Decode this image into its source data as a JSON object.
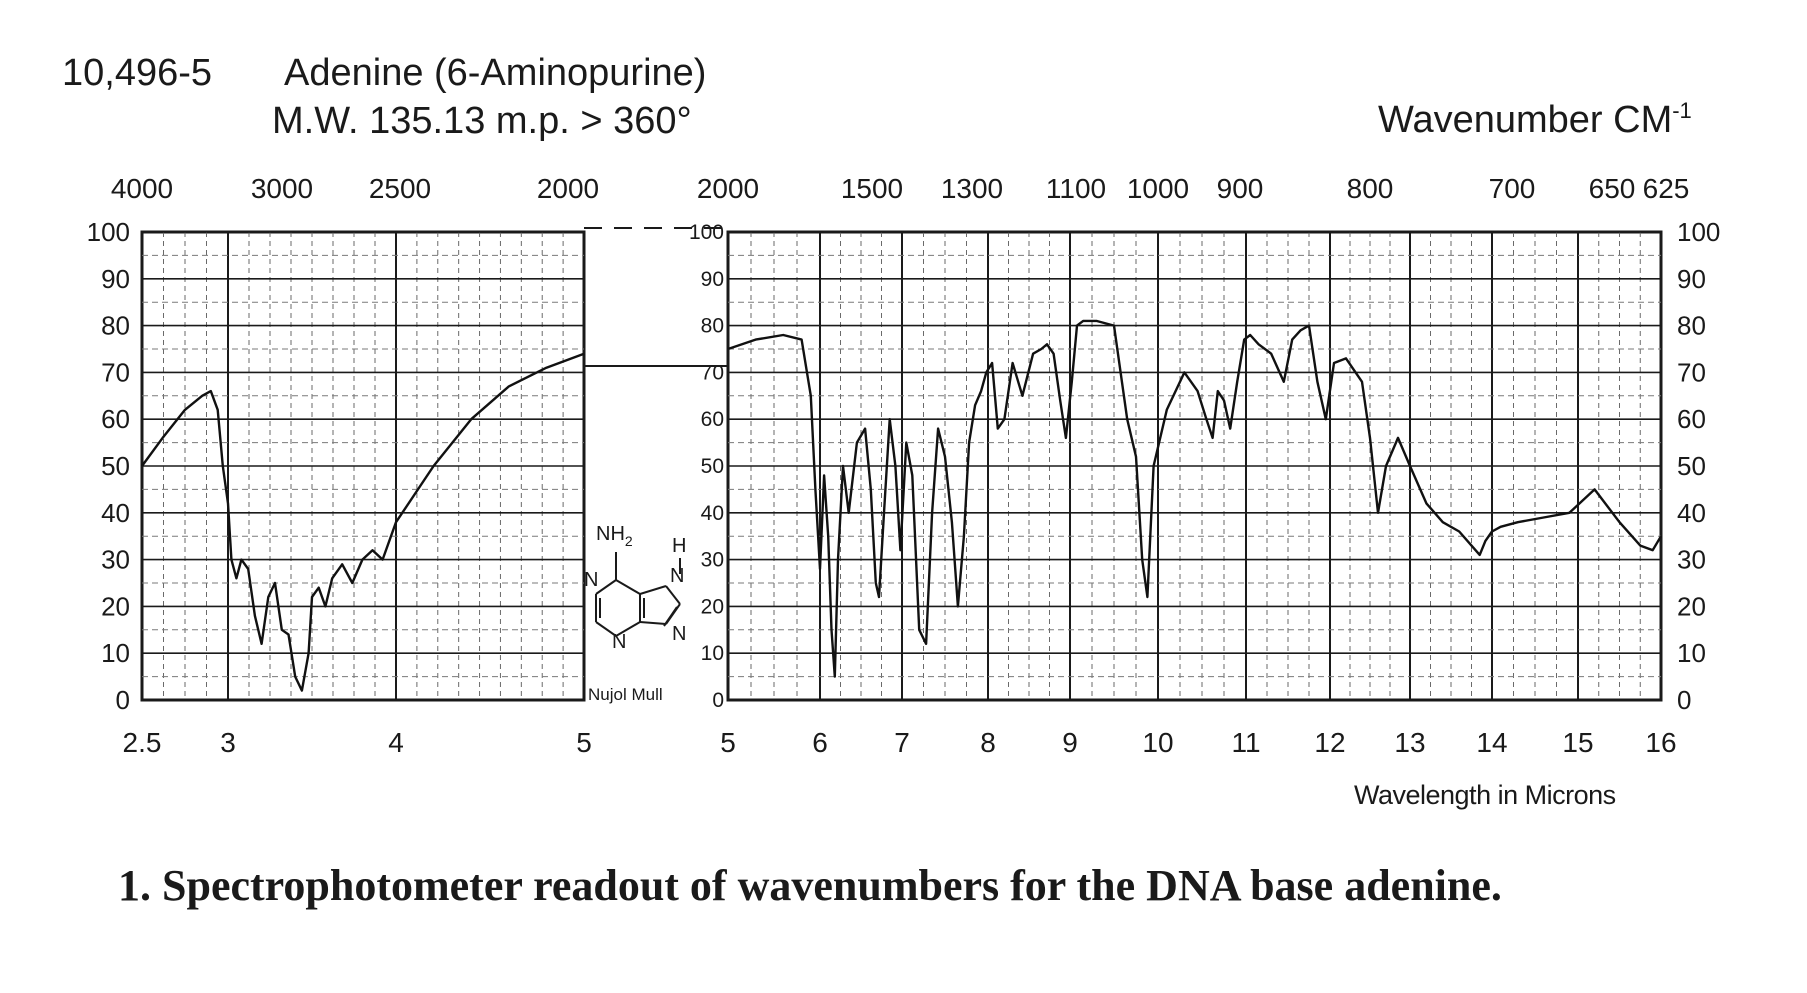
{
  "header": {
    "catalog": "10,496-5",
    "name": "Adenine (6-Aminopurine)",
    "mw": "M.W. 135.13 m.p. > 360°",
    "wavenumber_label": "Wavenumber CM",
    "wavenumber_exp": "-1"
  },
  "wavelength_label": "Wavelength in Microns",
  "caption": "1. Spectrophotometer readout of wavenumbers for the DNA base adenine.",
  "structure": {
    "nh2": "NH",
    "nh2_sub": "2",
    "h": "H",
    "n": "N",
    "sample": "Nujol Mull"
  },
  "chart_data": {
    "type": "line",
    "title": "Adenine (6-Aminopurine)",
    "xlabel": "Wavelength in Microns",
    "x2label": "Wavenumber CM-1",
    "ylabel": "",
    "ylim": [
      0,
      100
    ],
    "grid": true,
    "panels": [
      {
        "xlim": [
          2.5,
          5
        ],
        "x_ticks": [
          "2.5",
          "3",
          "4",
          "5"
        ],
        "top_ticks": [
          "4000",
          "3000",
          "2500",
          "2000"
        ],
        "y_ticks": [
          "0",
          "10",
          "20",
          "30",
          "40",
          "50",
          "60",
          "70",
          "80",
          "90",
          "100"
        ],
        "series": [
          {
            "x": [
              2.5,
              2.62,
              2.75,
              2.85,
              2.9,
              2.94,
              2.97,
              3.0,
              3.02,
              3.05,
              3.08,
              3.12,
              3.16,
              3.2,
              3.24,
              3.28,
              3.32,
              3.36,
              3.4,
              3.44,
              3.48,
              3.5,
              3.54,
              3.58,
              3.62,
              3.68,
              3.74,
              3.8,
              3.86,
              3.92,
              4.0,
              4.2,
              4.4,
              4.6,
              4.8,
              5.0
            ],
            "y": [
              50,
              56,
              62,
              65,
              66,
              62,
              50,
              42,
              30,
              26,
              30,
              28,
              18,
              12,
              22,
              25,
              15,
              14,
              5,
              2,
              10,
              22,
              24,
              20,
              26,
              29,
              25,
              30,
              32,
              30,
              38,
              50,
              60,
              67,
              71,
              74
            ]
          }
        ]
      },
      {
        "xlim": [
          5,
          16
        ],
        "x_ticks": [
          "5",
          "6",
          "7",
          "8",
          "9",
          "10",
          "11",
          "12",
          "13",
          "14",
          "15",
          "16"
        ],
        "top_ticks": [
          "2000",
          "1500",
          "1300",
          "1100",
          "1000",
          "900",
          "800",
          "700",
          "650",
          "625"
        ],
        "y_ticks": [
          "0",
          "10",
          "20",
          "30",
          "40",
          "50",
          "60",
          "70",
          "80",
          "90",
          "100"
        ],
        "series": [
          {
            "x": [
              5.0,
              5.3,
              5.6,
              5.8,
              5.9,
              5.95,
              6.0,
              6.05,
              6.1,
              6.14,
              6.18,
              6.22,
              6.28,
              6.35,
              6.45,
              6.55,
              6.62,
              6.68,
              6.72,
              6.78,
              6.85,
              6.92,
              6.98,
              7.05,
              7.12,
              7.2,
              7.28,
              7.35,
              7.42,
              7.5,
              7.58,
              7.65,
              7.72,
              7.78,
              7.85,
              7.92,
              7.98,
              8.05,
              8.12,
              8.2,
              8.3,
              8.42,
              8.55,
              8.65,
              8.72,
              8.8,
              8.88,
              8.95,
              9.02,
              9.08,
              9.15,
              9.3,
              9.5,
              9.65,
              9.75,
              9.82,
              9.88,
              9.95,
              10.1,
              10.3,
              10.45,
              10.55,
              10.62,
              10.68,
              10.75,
              10.82,
              10.9,
              10.98,
              11.05,
              11.15,
              11.3,
              11.45,
              11.55,
              11.65,
              11.75,
              11.85,
              11.95,
              12.05,
              12.2,
              12.4,
              12.5,
              12.55,
              12.6,
              12.7,
              12.85,
              13.0,
              13.2,
              13.4,
              13.6,
              13.75,
              13.85,
              13.92,
              14.0,
              14.1,
              14.3,
              14.6,
              14.9,
              15.2,
              15.5,
              15.75,
              15.9,
              16.0
            ],
            "y": [
              75,
              77,
              78,
              77,
              65,
              45,
              28,
              48,
              35,
              15,
              5,
              30,
              50,
              40,
              55,
              58,
              45,
              25,
              22,
              40,
              60,
              50,
              32,
              55,
              48,
              15,
              12,
              40,
              58,
              52,
              38,
              20,
              35,
              55,
              63,
              66,
              70,
              72,
              58,
              60,
              72,
              65,
              74,
              75,
              76,
              74,
              64,
              56,
              68,
              80,
              81,
              81,
              80,
              60,
              52,
              30,
              22,
              50,
              62,
              70,
              66,
              60,
              56,
              66,
              64,
              58,
              68,
              77,
              78,
              76,
              74,
              68,
              77,
              79,
              80,
              68,
              60,
              72,
              73,
              68,
              56,
              48,
              40,
              50,
              56,
              50,
              42,
              38,
              36,
              33,
              31,
              34,
              36,
              37,
              38,
              39,
              40,
              45,
              38,
              33,
              32,
              35
            ]
          }
        ]
      }
    ]
  }
}
